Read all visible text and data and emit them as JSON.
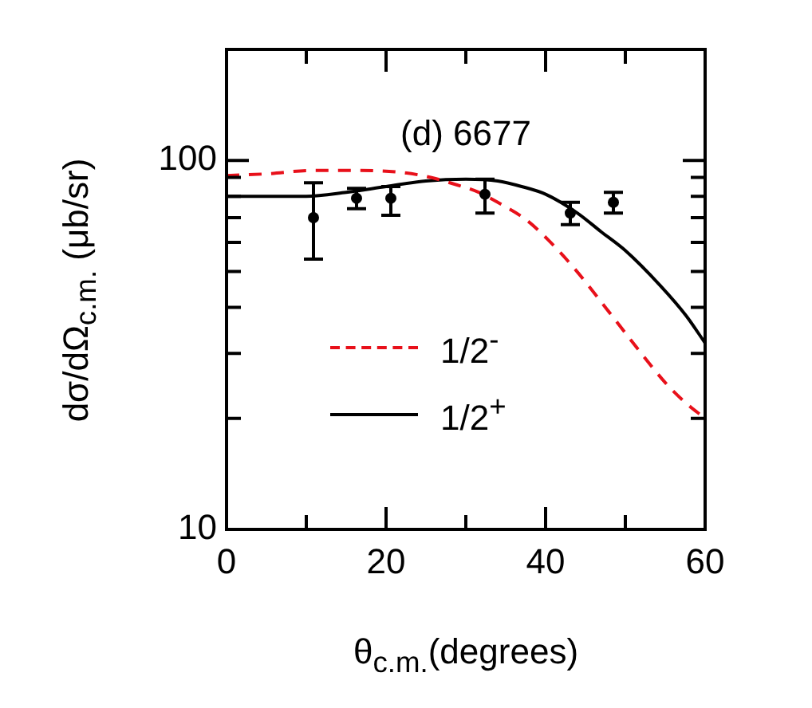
{
  "chart_data": {
    "type": "line",
    "title": "(d) 6677",
    "xlabel": "θ$_{c.m.}$(degrees)",
    "ylabel": "dσ/dΩ$_{c.m.}$ (μb/sr)",
    "xlim": [
      0,
      60
    ],
    "xticks": [
      0,
      {
        "value": 10,
        "label": null
      },
      20,
      {
        "value": 30,
        "label": null
      },
      40,
      {
        "value": 50,
        "label": null
      },
      60
    ],
    "ylim": [
      10,
      200
    ],
    "yticks": [
      10,
      {
        "value": 20,
        "label": null
      },
      {
        "value": 30,
        "label": null
      },
      {
        "value": 40,
        "label": null
      },
      {
        "value": 50,
        "label": null
      },
      {
        "value": 60,
        "label": null
      },
      {
        "value": 70,
        "label": null
      },
      {
        "value": 80,
        "label": null
      },
      {
        "value": 90,
        "label": null
      },
      100
    ],
    "log": true,
    "grid": false,
    "legend": "bottom left",
    "series": [
      {
        "type": "scatter",
        "color": "#000000",
        "marker": "circle",
        "x": [
          10.9,
          16.3,
          20.6,
          32.4,
          43.1,
          48.5
        ],
        "values": [
          70,
          79,
          79,
          81,
          72,
          77
        ],
        "errors": [
          [
            54,
            87
          ],
          [
            74,
            84
          ],
          [
            71,
            85
          ],
          [
            72,
            89
          ],
          [
            67,
            77
          ],
          [
            72,
            82
          ]
        ]
      },
      {
        "type": "line",
        "name": "1/2$^{-}$",
        "color": "#e8101a",
        "line_style": "dashed",
        "marker": "none",
        "x": [
          0,
          5,
          11,
          16,
          21.6,
          25.6,
          28,
          31.6,
          34,
          37.6,
          40.3,
          43.6,
          48.3,
          52,
          55,
          57.6,
          60
        ],
        "values": [
          91,
          92,
          94,
          94,
          93,
          90,
          87,
          82,
          77,
          69,
          61,
          51,
          38,
          30,
          25,
          22,
          20
        ]
      },
      {
        "type": "line",
        "name": "1/2$^{+}$",
        "color": "#000000",
        "line_style": "solid",
        "marker": "none",
        "x": [
          0,
          5,
          10,
          15,
          20,
          25,
          30,
          34,
          37,
          40,
          44,
          47,
          50,
          54.3,
          57.6,
          60
        ],
        "values": [
          80,
          80,
          80,
          82,
          85,
          88,
          89,
          88,
          85,
          81,
          72,
          64,
          57,
          46,
          38,
          32
        ]
      }
    ]
  }
}
